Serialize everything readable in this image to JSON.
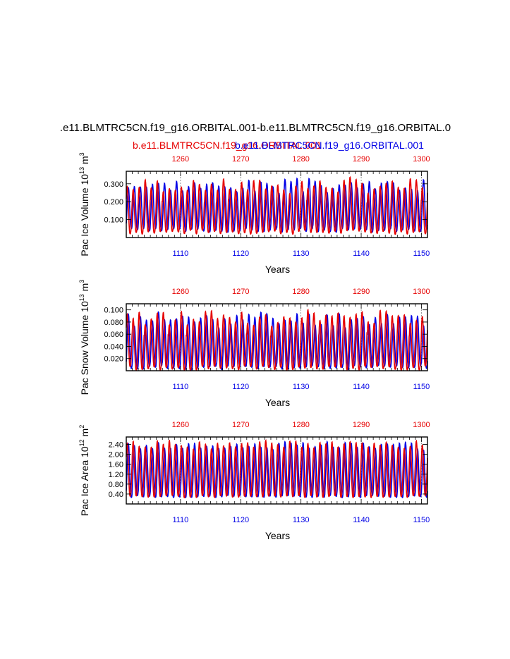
{
  "title": {
    "main": ".e11.BLMTRC5CN.f19_g16.ORBITAL.001-b.e11.BLMTRC5CN.f19_g16.ORBITAL.0",
    "case_red": "b.e11.BLMTRC5CN.f19_g16.ORBITAL.001",
    "case_blue": "b.e11.BLMTRC5CN.f19_g16.ORBITAL.001",
    "color_red": "#e60000",
    "color_blue": "#0000e6"
  },
  "chart_data": [
    {
      "type": "line",
      "ylabel_text": "Pac Ice Volume 10",
      "ylabel_exp": "13",
      "ylabel_unit": " m",
      "ylabel_unit_exp": "3",
      "xlabel": "Years",
      "ylim": [
        0.0,
        0.37
      ],
      "yticks": [
        0.1,
        0.2,
        0.3
      ],
      "yticklabels": [
        "0.100",
        "0.200",
        "0.300"
      ],
      "x_bottom": {
        "range": [
          1101,
          1151
        ],
        "ticks": [
          1110,
          1120,
          1130,
          1140,
          1150
        ]
      },
      "x_top": {
        "range": [
          1251,
          1301
        ],
        "ticks": [
          1260,
          1270,
          1280,
          1290,
          1300
        ]
      },
      "series": [
        {
          "name": "blue",
          "color": "#0000e6",
          "base_min": 0.04,
          "base_max": 0.29,
          "amp_var": 0.035,
          "phase": 0.15,
          "seed": 3
        },
        {
          "name": "red",
          "color": "#e60000",
          "base_min": 0.03,
          "base_max": 0.29,
          "amp_var": 0.04,
          "phase": 0.35,
          "seed": 7
        }
      ]
    },
    {
      "type": "line",
      "ylabel_text": "Pac Snow Volume 10",
      "ylabel_exp": "13",
      "ylabel_unit": " m",
      "ylabel_unit_exp": "3",
      "xlabel": "Years",
      "ylim": [
        0.0,
        0.11
      ],
      "yticks": [
        0.02,
        0.04,
        0.06,
        0.08,
        0.1
      ],
      "yticklabels": [
        "0.020",
        "0.040",
        "0.060",
        "0.080",
        "0.100"
      ],
      "x_bottom": {
        "range": [
          1101,
          1151
        ],
        "ticks": [
          1110,
          1120,
          1130,
          1140,
          1150
        ]
      },
      "x_top": {
        "range": [
          1251,
          1301
        ],
        "ticks": [
          1260,
          1270,
          1280,
          1290,
          1300
        ]
      },
      "series": [
        {
          "name": "blue",
          "color": "#0000e6",
          "base_min": 0.005,
          "base_max": 0.085,
          "amp_var": 0.012,
          "phase": 0.15,
          "seed": 11
        },
        {
          "name": "red",
          "color": "#e60000",
          "base_min": 0.004,
          "base_max": 0.088,
          "amp_var": 0.013,
          "phase": 0.35,
          "seed": 13
        }
      ]
    },
    {
      "type": "line",
      "ylabel_text": "Pac Ice Area 10",
      "ylabel_exp": "12",
      "ylabel_unit": " m",
      "ylabel_unit_exp": "2",
      "xlabel": "Years",
      "ylim": [
        0.0,
        2.7
      ],
      "yticks": [
        0.4,
        0.8,
        1.2,
        1.6,
        2.0,
        2.4
      ],
      "yticklabels": [
        "0.40",
        "0.80",
        "1.20",
        "1.60",
        "2.00",
        "2.40"
      ],
      "x_bottom": {
        "range": [
          1101,
          1151
        ],
        "ticks": [
          1110,
          1120,
          1130,
          1140,
          1150
        ]
      },
      "x_top": {
        "range": [
          1251,
          1301
        ],
        "ticks": [
          1260,
          1270,
          1280,
          1290,
          1300
        ]
      },
      "series": [
        {
          "name": "blue",
          "color": "#0000e6",
          "base_min": 0.3,
          "base_max": 2.35,
          "amp_var": 0.15,
          "phase": 0.15,
          "seed": 17
        },
        {
          "name": "red",
          "color": "#e60000",
          "base_min": 0.3,
          "base_max": 2.4,
          "amp_var": 0.15,
          "phase": 0.35,
          "seed": 19
        }
      ]
    }
  ]
}
